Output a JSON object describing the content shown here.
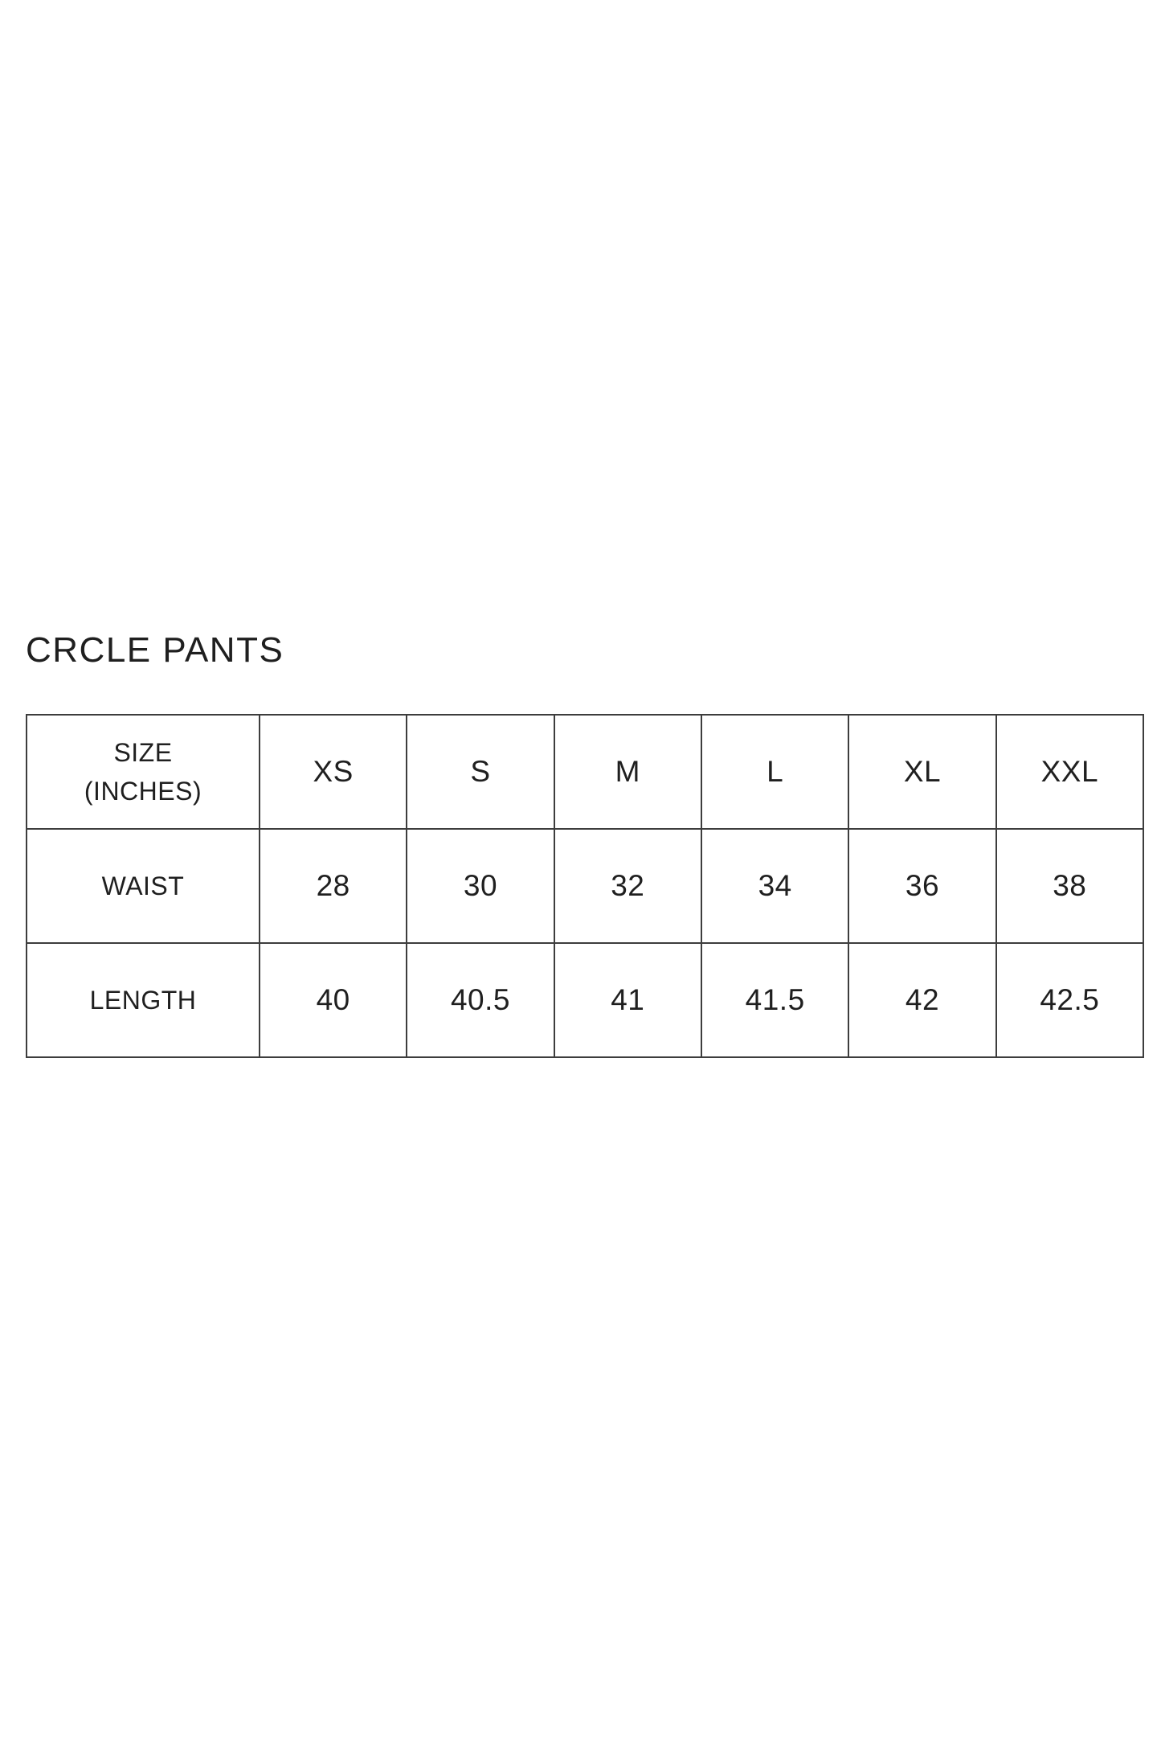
{
  "title": "CRCLE PANTS",
  "colors": {
    "text": "#1f1f1f",
    "border": "#3d3d3d",
    "background": "#ffffff"
  },
  "size_chart": {
    "header": {
      "line1": "SIZE",
      "line2": "(INCHES)"
    },
    "columns": [
      "XS",
      "S",
      "M",
      "L",
      "XL",
      "XXL"
    ],
    "rows": [
      {
        "label": "WAIST",
        "values": [
          "28",
          "30",
          "32",
          "34",
          "36",
          "38"
        ]
      },
      {
        "label": "LENGTH",
        "values": [
          "40",
          "40.5",
          "41",
          "41.5",
          "42",
          "42.5"
        ]
      }
    ]
  }
}
